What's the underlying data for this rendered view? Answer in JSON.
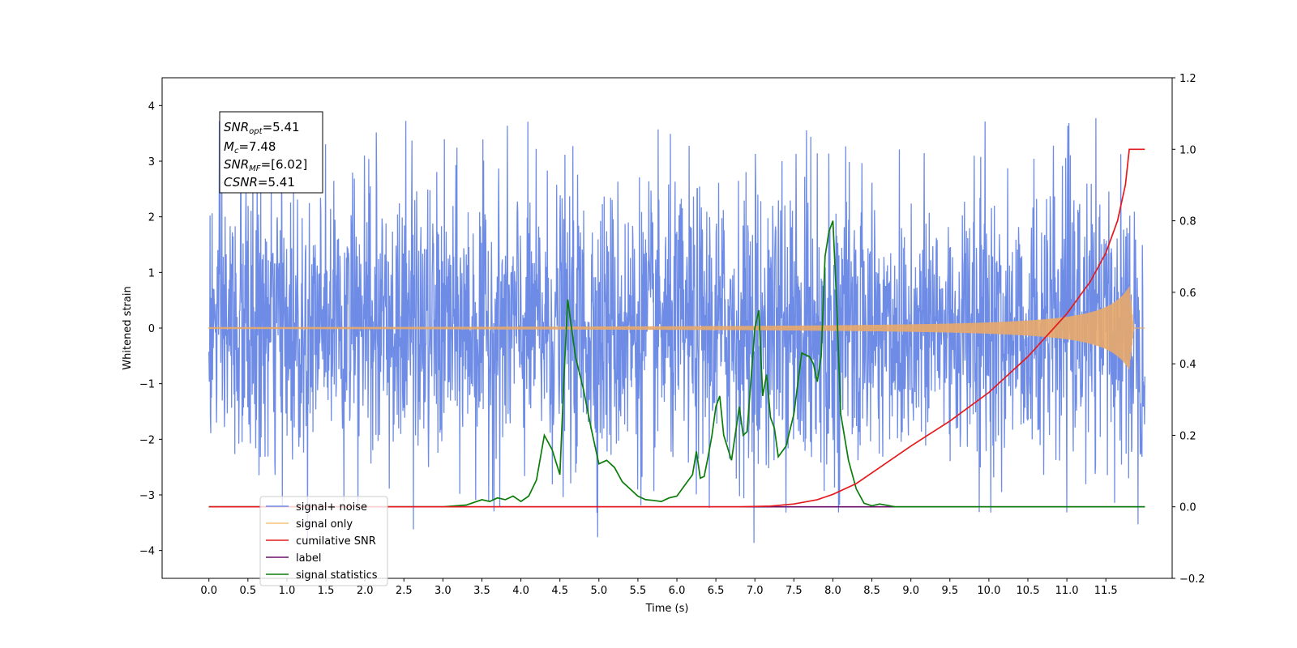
{
  "chart_data": {
    "type": "line",
    "xlabel": "Time (s)",
    "ylabel": "Whitened strain",
    "xlim": [
      -0.6,
      12.35
    ],
    "ylim": [
      -4.5,
      4.5
    ],
    "y2lim": [
      -0.2,
      1.2
    ],
    "grid": false,
    "legend_position": "lower-left",
    "x_ticks": [
      "0.0",
      "0.5",
      "1.0",
      "1.5",
      "2.0",
      "2.5",
      "3.0",
      "3.5",
      "4.0",
      "4.5",
      "5.0",
      "5.5",
      "6.0",
      "6.5",
      "7.0",
      "7.5",
      "8.0",
      "8.5",
      "9.0",
      "9.5",
      "10.0",
      "10.5",
      "11.0",
      "11.5"
    ],
    "y_ticks": [
      "−4",
      "−3",
      "−2",
      "−1",
      "0",
      "1",
      "2",
      "3",
      "4"
    ],
    "y2_ticks": [
      "−0.2",
      "0.0",
      "0.2",
      "0.4",
      "0.6",
      "0.8",
      "1.0",
      "1.2"
    ],
    "annotation": {
      "lines": [
        {
          "symbol": "SNR",
          "sub": "opt",
          "value": "=5.41"
        },
        {
          "symbol": "M",
          "sub": "c",
          "value": "=7.48"
        },
        {
          "symbol": "SNR",
          "sub": "MF",
          "value": "=[6.02]"
        },
        {
          "symbol": "CSNR",
          "sub": "",
          "value": "=5.41"
        }
      ]
    },
    "series": [
      {
        "name": "signal+ noise",
        "color": "#6e8ce6",
        "axis": "left",
        "description_values": {
          "noise_sigma": 1.25,
          "x_range": [
            0.0,
            12.0
          ]
        }
      },
      {
        "name": "signal only",
        "color": "#e8a86a",
        "axis": "left",
        "chirp": {
          "x_start": 0.0,
          "x_peak": 11.8,
          "x_end": 12.0,
          "peak_amplitude": 0.75
        }
      },
      {
        "name": "cumilative SNR",
        "color": "#e41a1c",
        "axis": "right",
        "x": [
          0.0,
          6.8,
          7.2,
          7.5,
          7.8,
          8.0,
          8.3,
          8.6,
          9.0,
          9.5,
          10.0,
          10.5,
          11.0,
          11.3,
          11.5,
          11.65,
          11.75,
          11.8,
          12.0
        ],
        "values": [
          0.0,
          0.0,
          0.002,
          0.008,
          0.02,
          0.035,
          0.065,
          0.11,
          0.17,
          0.24,
          0.32,
          0.42,
          0.54,
          0.63,
          0.71,
          0.8,
          0.9,
          1.0,
          1.0
        ]
      },
      {
        "name": "label",
        "color": "#6a0d6a",
        "axis": "right",
        "x": [
          0.0,
          12.0
        ],
        "values": [
          0.0,
          0.0
        ]
      },
      {
        "name": "signal statistics",
        "color": "#0b7d0b",
        "axis": "right",
        "x": [
          0.0,
          3.0,
          3.3,
          3.5,
          3.6,
          3.7,
          3.8,
          3.9,
          4.0,
          4.1,
          4.2,
          4.3,
          4.4,
          4.5,
          4.55,
          4.6,
          4.65,
          4.7,
          4.8,
          4.9,
          5.0,
          5.1,
          5.2,
          5.3,
          5.4,
          5.5,
          5.6,
          5.7,
          5.8,
          5.9,
          6.0,
          6.1,
          6.2,
          6.25,
          6.3,
          6.35,
          6.4,
          6.45,
          6.5,
          6.55,
          6.6,
          6.7,
          6.8,
          6.85,
          6.9,
          7.0,
          7.05,
          7.1,
          7.15,
          7.2,
          7.25,
          7.3,
          7.4,
          7.5,
          7.6,
          7.7,
          7.75,
          7.8,
          7.85,
          7.9,
          7.95,
          8.0,
          8.05,
          8.1,
          8.2,
          8.3,
          8.4,
          8.5,
          8.6,
          8.8,
          12.0
        ],
        "values": [
          0.0,
          0.0,
          0.005,
          0.02,
          0.015,
          0.025,
          0.02,
          0.03,
          0.015,
          0.03,
          0.075,
          0.2,
          0.16,
          0.09,
          0.35,
          0.58,
          0.5,
          0.42,
          0.33,
          0.22,
          0.12,
          0.13,
          0.11,
          0.07,
          0.05,
          0.03,
          0.02,
          0.018,
          0.015,
          0.025,
          0.03,
          0.06,
          0.09,
          0.155,
          0.08,
          0.085,
          0.14,
          0.2,
          0.28,
          0.31,
          0.2,
          0.13,
          0.28,
          0.2,
          0.21,
          0.5,
          0.55,
          0.31,
          0.37,
          0.25,
          0.22,
          0.14,
          0.17,
          0.26,
          0.43,
          0.42,
          0.4,
          0.35,
          0.42,
          0.7,
          0.77,
          0.8,
          0.56,
          0.26,
          0.13,
          0.05,
          0.01,
          0.003,
          0.008,
          0.0,
          0.0
        ]
      }
    ]
  }
}
